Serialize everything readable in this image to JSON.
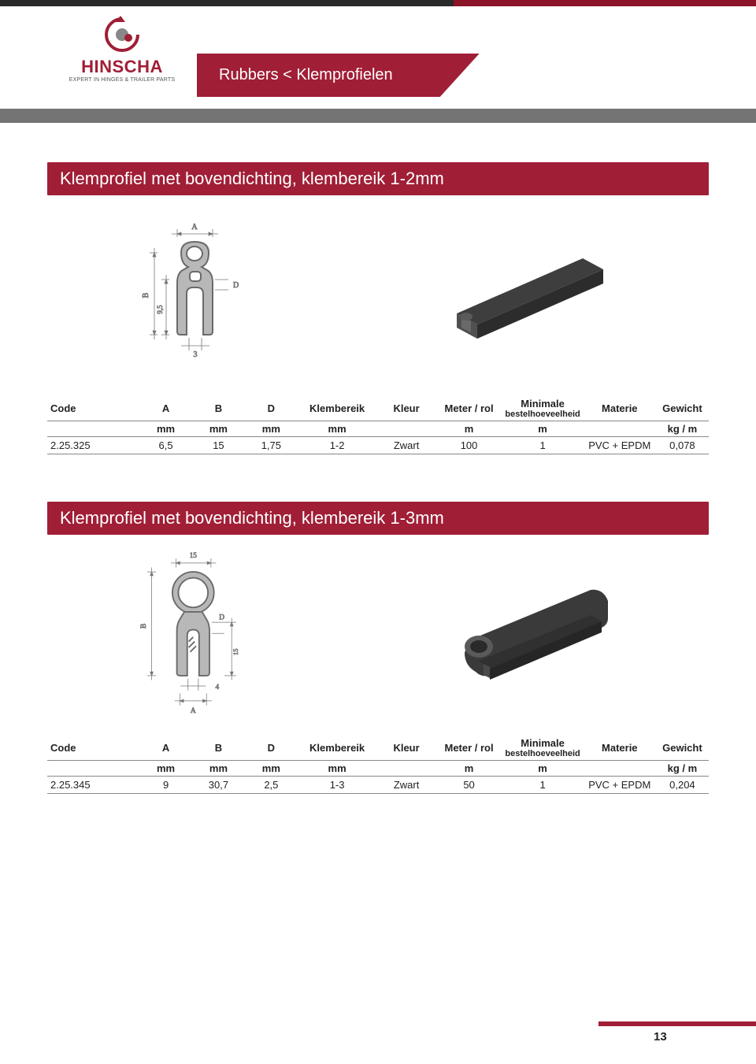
{
  "colors": {
    "brand_red": "#a01e36",
    "stripe_gray": "#747474",
    "top_dark": "#2a2a2a",
    "border_gray": "#888888",
    "text": "#222222",
    "diagram_gray": "#a8a8a8",
    "background": "#ffffff"
  },
  "logo": {
    "name": "HINSCHA",
    "tagline": "EXPERT IN HINGES & TRAILER PARTS"
  },
  "breadcrumb": "Rubbers < Klemprofielen",
  "sections": [
    {
      "title": "Klemprofiel met bovendichting, klembereik 1-2mm",
      "diagram": {
        "labels": {
          "A": "A",
          "B": "B",
          "D": "D",
          "dim_v": "9,5",
          "dim_h": "3"
        }
      },
      "table": {
        "header": [
          "Code",
          "A",
          "B",
          "D",
          "Klembereik",
          "Kleur",
          "Meter / rol",
          "Minimale bestelhoeveelheid",
          "Materie",
          "Gewicht"
        ],
        "units": [
          "",
          "mm",
          "mm",
          "mm",
          "mm",
          "",
          "m",
          "m",
          "",
          "kg / m"
        ],
        "col_widths_pct": [
          14,
          8,
          8,
          8,
          12,
          9,
          10,
          12,
          11,
          8
        ],
        "rows": [
          [
            "2.25.325",
            "6,5",
            "15",
            "1,75",
            "1-2",
            "Zwart",
            "100",
            "1",
            "PVC + EPDM",
            "0,078"
          ]
        ]
      }
    },
    {
      "title": "Klemprofiel met bovendichting, klembereik 1-3mm",
      "diagram": {
        "labels": {
          "A": "A",
          "B": "B",
          "D": "D",
          "dim_top": "15",
          "dim_side": "15",
          "dim_bottom": "4"
        }
      },
      "table": {
        "header": [
          "Code",
          "A",
          "B",
          "D",
          "Klembereik",
          "Kleur",
          "Meter / rol",
          "Minimale bestelhoeveelheid",
          "Materie",
          "Gewicht"
        ],
        "units": [
          "",
          "mm",
          "mm",
          "mm",
          "mm",
          "",
          "m",
          "m",
          "",
          "kg / m"
        ],
        "col_widths_pct": [
          14,
          8,
          8,
          8,
          12,
          9,
          10,
          12,
          11,
          8
        ],
        "rows": [
          [
            "2.25.345",
            "9",
            "30,7",
            "2,5",
            "1-3",
            "Zwart",
            "50",
            "1",
            "PVC + EPDM",
            "0,204"
          ]
        ]
      }
    }
  ],
  "page_number": "13"
}
